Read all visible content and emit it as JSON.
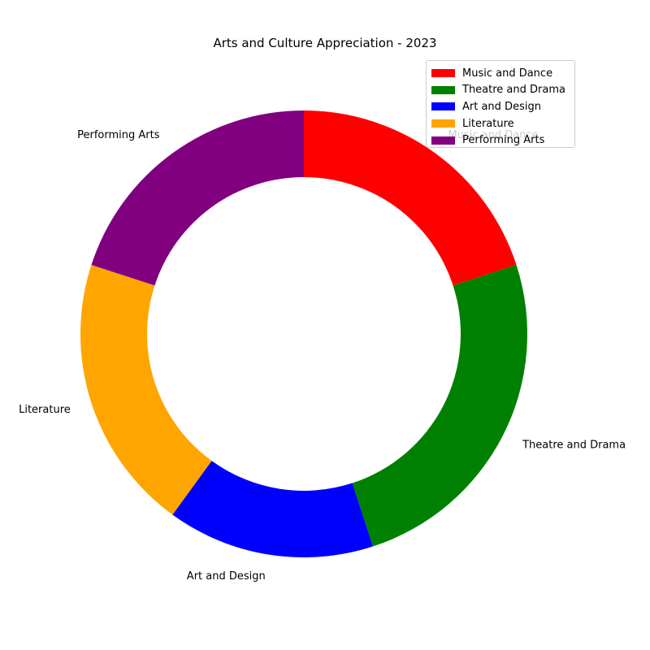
{
  "chart_data": {
    "type": "pie",
    "variant": "donut",
    "title": "Arts and Culture Appreciation - 2023",
    "categories": [
      "Music and Dance",
      "Theatre and Drama",
      "Art and Design",
      "Literature",
      "Performing Arts"
    ],
    "values": [
      20,
      25,
      15,
      20,
      20
    ],
    "colors": [
      "#ff0000",
      "#008000",
      "#0000ff",
      "#ffa500",
      "#800080"
    ],
    "start_angle_deg": 90,
    "direction": "clockwise",
    "legend": {
      "position": "top-right",
      "entries": [
        "Music and Dance",
        "Theatre and Drama",
        "Art and Design",
        "Literature",
        "Performing Arts"
      ]
    }
  }
}
